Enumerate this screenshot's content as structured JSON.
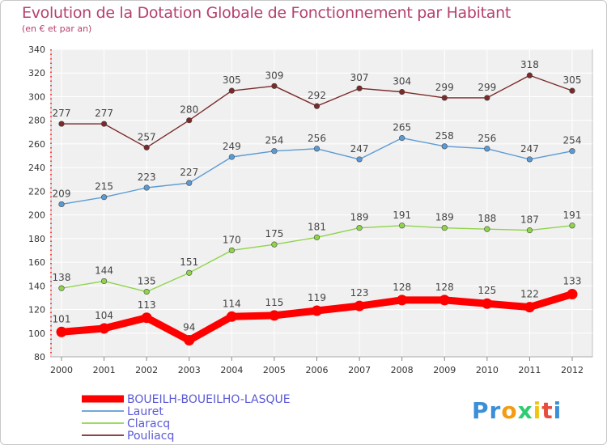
{
  "title": "Evolution de la Dotation Globale de Fonctionnement par Habitant",
  "subtitle": "(en € et par an)",
  "logo": "Proxiti",
  "chart_data": {
    "type": "line",
    "title": "Evolution de la Dotation Globale de Fonctionnement par Habitant",
    "ylabel": "(en € et par an)",
    "xlabel": "",
    "ylim": [
      80,
      340
    ],
    "yticks": [
      80,
      100,
      120,
      140,
      160,
      180,
      200,
      220,
      240,
      260,
      280,
      300,
      320,
      340
    ],
    "grid": true,
    "legend": "bottom-left",
    "categories": [
      "2000",
      "2001",
      "2002",
      "2003",
      "2004",
      "2005",
      "2006",
      "2007",
      "2008",
      "2009",
      "2010",
      "2011",
      "2012"
    ],
    "series": [
      {
        "name": "BOUEILH-BOUEILHO-LASQUE",
        "color": "#ff0000",
        "values": [
          101,
          104,
          113,
          94,
          114,
          115,
          119,
          123,
          128,
          128,
          125,
          122,
          133
        ]
      },
      {
        "name": "Lauret",
        "color": "#5b9bd5",
        "values": [
          209,
          215,
          223,
          227,
          249,
          254,
          256,
          247,
          265,
          258,
          256,
          247,
          254
        ]
      },
      {
        "name": "Claracq",
        "color": "#8fd44a",
        "values": [
          138,
          144,
          135,
          151,
          170,
          175,
          181,
          189,
          191,
          189,
          188,
          187,
          191
        ]
      },
      {
        "name": "Pouliacq",
        "color": "#7b2a2a",
        "values": [
          277,
          277,
          257,
          280,
          305,
          309,
          292,
          307,
          304,
          299,
          299,
          318,
          305
        ]
      }
    ]
  }
}
